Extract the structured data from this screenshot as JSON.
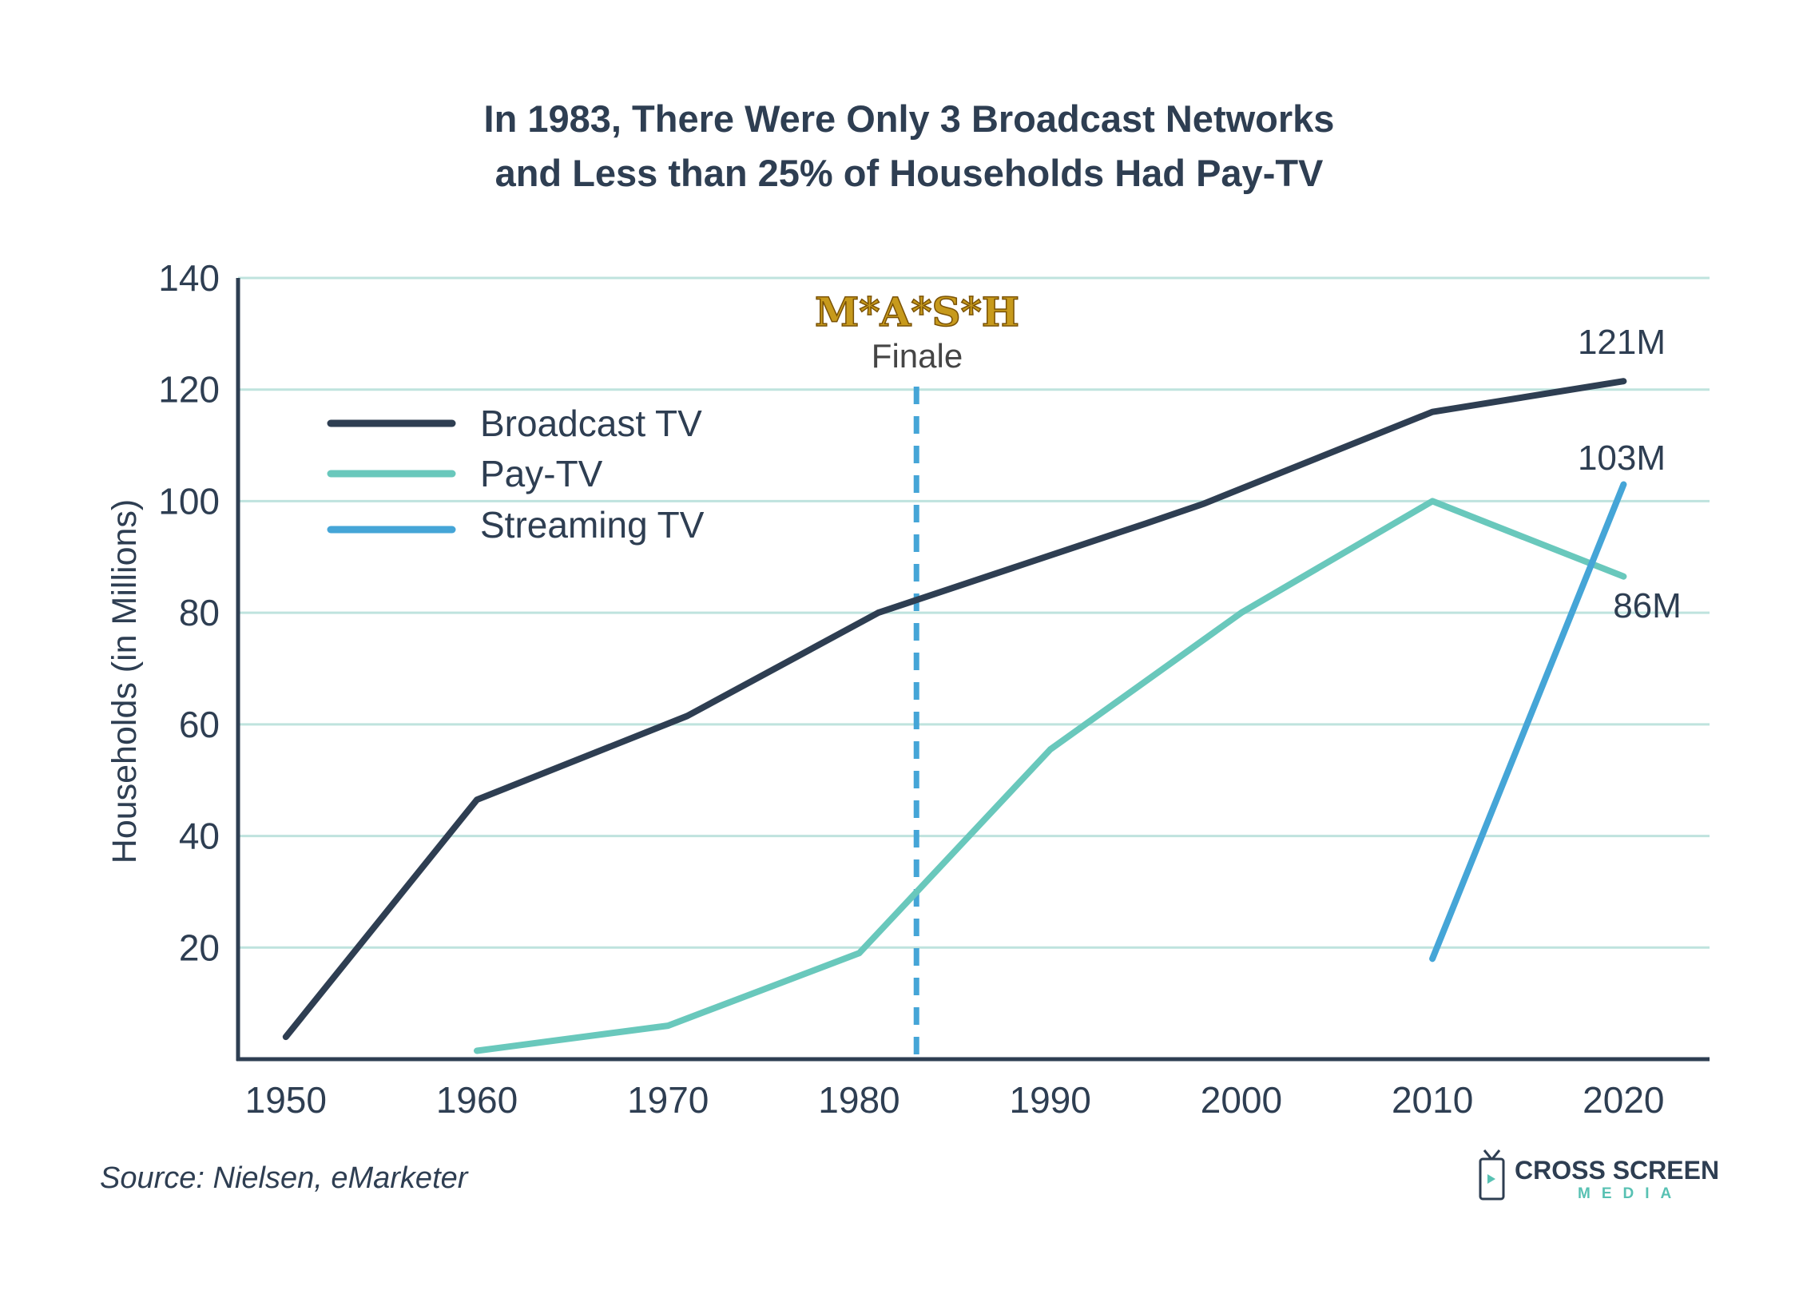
{
  "chart_data": {
    "type": "line",
    "title_lines": [
      "In 1983, There Were Only 3 Broadcast Networks",
      "and Less than 25% of Households Had Pay-TV"
    ],
    "ylabel": "Households (in Millions)",
    "xlabel": "",
    "xlim": [
      1947.5,
      2024.5
    ],
    "ylim": [
      0,
      140
    ],
    "x_ticks": [
      1950,
      1960,
      1970,
      1980,
      1990,
      2000,
      2010,
      2020
    ],
    "y_ticks": [
      20,
      40,
      60,
      80,
      100,
      120,
      140
    ],
    "grid": "horizontal",
    "legend_position": "top-left",
    "series": [
      {
        "name": "Broadcast TV",
        "color": "#2e3e52",
        "points": [
          [
            1950,
            4
          ],
          [
            1960,
            46.5
          ],
          [
            1971,
            61.5
          ],
          [
            1981,
            80
          ],
          [
            1995,
            96
          ],
          [
            1998,
            99.5
          ],
          [
            2010,
            116
          ],
          [
            2020,
            121.5
          ]
        ]
      },
      {
        "name": "Pay-TV",
        "color": "#69c8bc",
        "points": [
          [
            1960,
            1.5
          ],
          [
            1970,
            6
          ],
          [
            1980,
            19
          ],
          [
            1990,
            55.5
          ],
          [
            2000,
            80
          ],
          [
            2010,
            100
          ],
          [
            2020,
            86.5
          ]
        ]
      },
      {
        "name": "Streaming TV",
        "color": "#45a5d7",
        "points": [
          [
            2010,
            18
          ],
          [
            2020,
            103
          ]
        ]
      }
    ],
    "event_marker": {
      "x": 1983,
      "line_color": "#45a5d7",
      "label_logo": "M*A*S*H",
      "label": "Finale"
    },
    "end_labels": [
      {
        "text": "121M",
        "x": 2020,
        "y": 121.5
      },
      {
        "text": "103M",
        "x": 2020,
        "y": 103
      },
      {
        "text": "86M",
        "x": 2020,
        "y": 86.5
      }
    ]
  },
  "source": "Source: Nielsen, eMarketer",
  "brand": {
    "line1": "CROSS SCREEN",
    "line2": "MEDIA",
    "accent": "#58c1b3",
    "dark": "#2e3e52"
  },
  "grid_color": "#bfe3de",
  "axis_color": "#2e3e52"
}
